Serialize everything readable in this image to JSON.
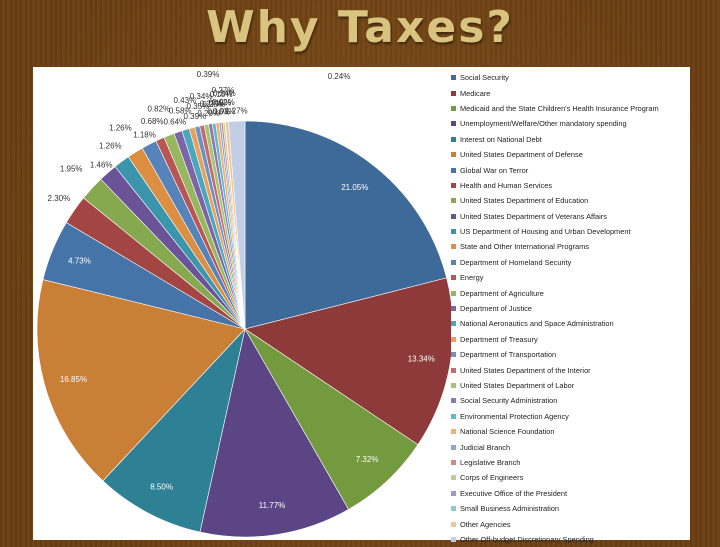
{
  "slide": {
    "title": "Why Taxes?"
  },
  "chart_data": {
    "type": "pie",
    "title": "",
    "legend_position": "right",
    "series": [
      {
        "name": "Social Security",
        "value": 21.05,
        "label": "21.05%",
        "color": "#3e6a9a"
      },
      {
        "name": "Medicare",
        "value": 13.34,
        "label": "13.34%",
        "color": "#8e3a3a"
      },
      {
        "name": "Medicaid and the State Children's Health Insurance Program",
        "value": 7.32,
        "label": "7.32%",
        "color": "#739a3e"
      },
      {
        "name": "Unemployment/Welfare/Other mandatory spending",
        "value": 11.77,
        "label": "11.77%",
        "color": "#5c4584"
      },
      {
        "name": "Interest on National Debt",
        "value": 8.5,
        "label": "8.50%",
        "color": "#2e8194"
      },
      {
        "name": "United States Department of Defense",
        "value": 16.85,
        "label": "16.85%",
        "color": "#c97f35"
      },
      {
        "name": "Global War on Terror",
        "value": 4.73,
        "label": "4.73%",
        "color": "#4674a8"
      },
      {
        "name": "Health and Human Services",
        "value": 2.3,
        "label": "2.30%",
        "color": "#a34542"
      },
      {
        "name": "United States Department of Education",
        "value": 1.95,
        "label": "1.95%",
        "color": "#86a84e"
      },
      {
        "name": "United States Department of Veterans Affairs",
        "value": 1.46,
        "label": "1.46%",
        "color": "#6a5396"
      },
      {
        "name": "US Department of Housing and Urban Development",
        "value": 1.26,
        "label": "1.26%",
        "color": "#3b95ab"
      },
      {
        "name": "State and Other International Programs",
        "value": 1.26,
        "label": "1.26%",
        "color": "#dc8f43"
      },
      {
        "name": "Department of Homeland Security",
        "value": 1.18,
        "label": "1.18%",
        "color": "#5583ba"
      },
      {
        "name": "Energy",
        "value": 0.68,
        "label": "0.68%",
        "color": "#b95553"
      },
      {
        "name": "Department of Agriculture",
        "value": 0.82,
        "label": "0.82%",
        "color": "#97b85f"
      },
      {
        "name": "Department of Justice",
        "value": 0.64,
        "label": "0.64%",
        "color": "#7b65a6"
      },
      {
        "name": "National Aeronautics and Space Administration",
        "value": 0.58,
        "label": "0.58%",
        "color": "#4ba7bd"
      },
      {
        "name": "Department of Treasury",
        "value": 0.43,
        "label": "0.43%",
        "color": "#e8a05a"
      },
      {
        "name": "Department of Transportation",
        "value": 0.39,
        "label": "0.39%",
        "color": "#6b92c6"
      },
      {
        "name": "United States Department of the Interior",
        "value": 0.35,
        "label": "0.35%",
        "color": "#c46c6a"
      },
      {
        "name": "United States Department of Labor",
        "value": 0.34,
        "label": "0.34%",
        "color": "#a6c476"
      },
      {
        "name": "Social Security Administration",
        "value": 0.29,
        "label": "0.29%",
        "color": "#8d7ab4"
      },
      {
        "name": "Environmental Protection Agency",
        "value": 0.27,
        "label": "0.27%",
        "color": "#66b7c9"
      },
      {
        "name": "National Science Foundation",
        "value": 0.25,
        "label": "0.25%",
        "color": "#efb171"
      },
      {
        "name": "Judicial Branch",
        "value": 0.16,
        "label": "0.16%",
        "color": "#8ca5cf"
      },
      {
        "name": "Legislative Branch",
        "value": 0.15,
        "label": "0.15%",
        "color": "#cf8a88"
      },
      {
        "name": "Corps of Engineers",
        "value": 0.15,
        "label": "0.15%",
        "color": "#b8cf93"
      },
      {
        "name": "Executive Office of the President",
        "value": 0.01,
        "label": "0.01%",
        "color": "#a596c4"
      },
      {
        "name": "Small Business Administration",
        "value": 0.02,
        "label": "0.02%",
        "color": "#8ccad8"
      },
      {
        "name": "Other Agencies",
        "value": 0.24,
        "label": "0.24%",
        "color": "#f3c596"
      },
      {
        "name": "Other Off-budget Discretionary Spending",
        "value": 1.27,
        "label": "1.27%",
        "color": "#c2cde6"
      }
    ],
    "extra_labels": [
      "0.39%",
      "0.24%",
      "0.27%"
    ]
  }
}
